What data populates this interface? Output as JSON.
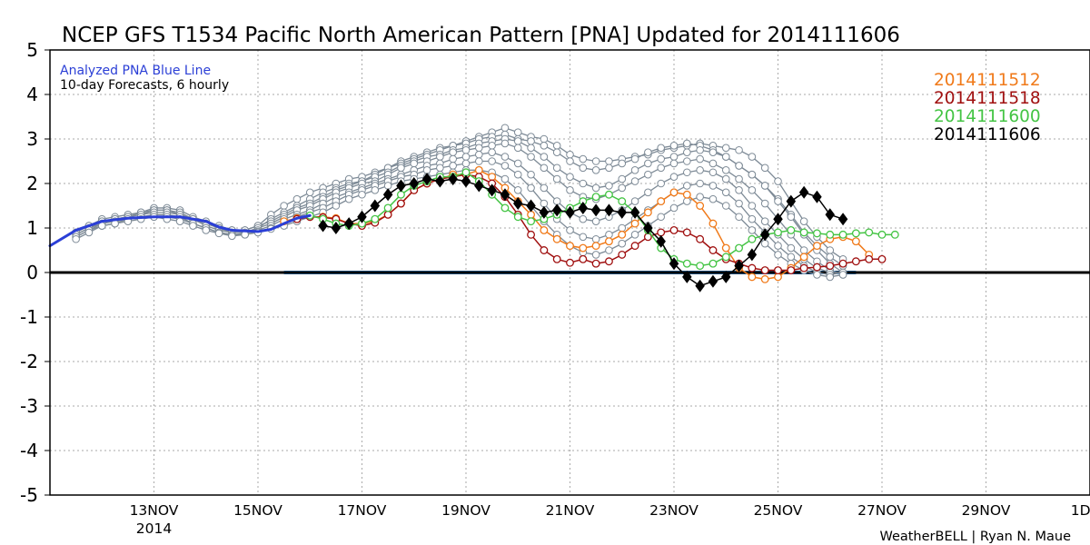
{
  "chart_data": {
    "type": "line",
    "title": "NCEP GFS T1534 Pacific North American Pattern [PNA] Updated for 2014111606",
    "annotation_line1": "Analyzed PNA Blue Line",
    "annotation_line2": "10-day Forecasts, 6 hourly",
    "credit": "WeatherBELL | Ryan N. Maue",
    "ylim": [
      -5,
      5
    ],
    "y_ticks": [
      "5",
      "4",
      "3",
      "2",
      "1",
      "0",
      "-1",
      "-2",
      "-3",
      "-4",
      "-5"
    ],
    "x_domain": [
      "2014-11-11",
      "2014-12-01"
    ],
    "x_ticks": [
      {
        "date": "2014-11-13",
        "label": "13NOV",
        "sub": "2014"
      },
      {
        "date": "2014-11-15",
        "label": "15NOV",
        "sub": ""
      },
      {
        "date": "2014-11-17",
        "label": "17NOV",
        "sub": ""
      },
      {
        "date": "2014-11-19",
        "label": "19NOV",
        "sub": ""
      },
      {
        "date": "2014-11-21",
        "label": "21NOV",
        "sub": ""
      },
      {
        "date": "2014-11-23",
        "label": "23NOV",
        "sub": ""
      },
      {
        "date": "2014-11-25",
        "label": "25NOV",
        "sub": ""
      },
      {
        "date": "2014-11-27",
        "label": "27NOV",
        "sub": ""
      },
      {
        "date": "2014-11-29",
        "label": "29NOV",
        "sub": ""
      },
      {
        "date": "2014-12-01",
        "label": "1DEC",
        "sub": ""
      }
    ],
    "grid": true,
    "legend_position": "top-right",
    "colors": {
      "analyzed": "#2b3fd6",
      "zero_line": "#000000",
      "zero_band": "#3a8fe0",
      "ensemble": "#7d8a96",
      "grid": "#aaaaaa"
    },
    "legend": [
      {
        "label": "2014111512",
        "color": "#f07a1a"
      },
      {
        "label": "2014111518",
        "color": "#a01010"
      },
      {
        "label": "2014111600",
        "color": "#44c444"
      },
      {
        "label": "2014111606",
        "color": "#000000"
      }
    ],
    "zero_band": {
      "x_start": "2014-11-15 12",
      "x_end": "2014-11-26 12",
      "y": 0
    },
    "analyzed": {
      "name": "Analyzed PNA Blue Line",
      "color": "#2b3fd6",
      "points": [
        [
          "2014-11-11 00",
          0.6
        ],
        [
          "2014-11-11 12",
          0.95
        ],
        [
          "2014-11-12 00",
          1.15
        ],
        [
          "2014-11-12 12",
          1.22
        ],
        [
          "2014-11-13 00",
          1.25
        ],
        [
          "2014-11-13 12",
          1.25
        ],
        [
          "2014-11-14 00",
          1.15
        ],
        [
          "2014-11-14 06",
          1.02
        ],
        [
          "2014-11-14 12",
          0.95
        ],
        [
          "2014-11-15 00",
          0.92
        ],
        [
          "2014-11-15 06",
          0.97
        ],
        [
          "2014-11-15 12",
          1.1
        ],
        [
          "2014-11-15 18",
          1.22
        ],
        [
          "2014-11-16 00",
          1.28
        ]
      ]
    },
    "series": [
      {
        "name": "2014111512",
        "color": "#f07a1a",
        "marker": "circle",
        "start": "2014-11-15 12",
        "values": [
          1.15,
          1.22,
          1.25,
          1.25,
          1.22,
          1.1,
          1.1,
          1.15,
          1.3,
          1.55,
          1.85,
          2.0,
          2.1,
          2.2,
          2.2,
          2.3,
          2.15,
          1.9,
          1.6,
          1.3,
          0.95,
          0.75,
          0.6,
          0.55,
          0.6,
          0.7,
          0.85,
          1.1,
          1.35,
          1.6,
          1.8,
          1.75,
          1.5,
          1.1,
          0.55,
          0.1,
          -0.1,
          -0.15,
          -0.1,
          0.1,
          0.35,
          0.6,
          0.75,
          0.8,
          0.7,
          0.4
        ]
      },
      {
        "name": "2014111518",
        "color": "#a01010",
        "marker": "circle",
        "start": "2014-11-15 18",
        "values": [
          1.2,
          1.25,
          1.24,
          1.2,
          1.1,
          1.05,
          1.12,
          1.3,
          1.55,
          1.85,
          2.0,
          2.1,
          2.15,
          2.2,
          2.15,
          2.0,
          1.7,
          1.3,
          0.85,
          0.5,
          0.3,
          0.22,
          0.3,
          0.2,
          0.25,
          0.4,
          0.6,
          0.8,
          0.9,
          0.95,
          0.9,
          0.75,
          0.5,
          0.3,
          0.2,
          0.1,
          0.05,
          0.05,
          0.05,
          0.1,
          0.12,
          0.15,
          0.2,
          0.25,
          0.3,
          0.3
        ]
      },
      {
        "name": "2014111600",
        "color": "#44c444",
        "marker": "circle",
        "start": "2014-11-16 00",
        "values": [
          1.28,
          1.2,
          1.1,
          1.05,
          1.1,
          1.2,
          1.45,
          1.75,
          1.95,
          2.05,
          2.15,
          2.15,
          2.25,
          2.05,
          1.75,
          1.45,
          1.25,
          1.15,
          1.2,
          1.3,
          1.45,
          1.6,
          1.7,
          1.75,
          1.6,
          1.35,
          0.95,
          0.55,
          0.3,
          0.2,
          0.15,
          0.2,
          0.35,
          0.55,
          0.75,
          0.85,
          0.9,
          0.95,
          0.9,
          0.88,
          0.85,
          0.85,
          0.88,
          0.9,
          0.85,
          0.85
        ]
      },
      {
        "name": "2014111606",
        "color": "#000000",
        "marker": "diamond",
        "start": "2014-11-16 06",
        "values": [
          1.05,
          1.0,
          1.1,
          1.25,
          1.5,
          1.75,
          1.95,
          2.0,
          2.1,
          2.05,
          2.1,
          2.05,
          1.95,
          1.85,
          1.75,
          1.55,
          1.5,
          1.35,
          1.4,
          1.35,
          1.45,
          1.4,
          1.4,
          1.35,
          1.35,
          1.0,
          0.7,
          0.2,
          -0.1,
          -0.3,
          -0.2,
          -0.1,
          0.15,
          0.4,
          0.85,
          1.2,
          1.6,
          1.8,
          1.7,
          1.3,
          1.2
        ]
      }
    ],
    "ensemble": {
      "name": "ensemble members",
      "color": "#7d8a96",
      "start": "2014-11-11 12",
      "members": [
        [
          0.9,
          1.05,
          1.2,
          1.25,
          1.3,
          1.35,
          1.45,
          1.45,
          1.4,
          1.25,
          1.15,
          1.05,
          0.95,
          0.95,
          1.05,
          1.3,
          1.5,
          1.65,
          1.8,
          1.9,
          2.0,
          2.1,
          2.15,
          2.25,
          2.35,
          2.5,
          2.6,
          2.7,
          2.8,
          2.85,
          2.95,
          3.05,
          3.15,
          3.25,
          3.15,
          3.05,
          3.0,
          2.85,
          2.65,
          2.55,
          2.5,
          2.5,
          2.55,
          2.6,
          2.65,
          2.75,
          2.8,
          2.85,
          2.9,
          2.85,
          2.8,
          2.75,
          2.6,
          2.35,
          2.05,
          1.6,
          1.15,
          0.8,
          0.5,
          0.3
        ],
        [
          0.85,
          1.0,
          1.15,
          1.2,
          1.25,
          1.3,
          1.4,
          1.4,
          1.35,
          1.2,
          1.1,
          1.0,
          0.9,
          0.9,
          1.0,
          1.2,
          1.35,
          1.5,
          1.65,
          1.8,
          1.9,
          2.0,
          2.05,
          2.2,
          2.35,
          2.45,
          2.55,
          2.65,
          2.75,
          2.85,
          2.9,
          3.0,
          3.05,
          3.1,
          3.0,
          2.95,
          2.85,
          2.7,
          2.5,
          2.35,
          2.3,
          2.35,
          2.45,
          2.55,
          2.7,
          2.8,
          2.85,
          2.9,
          2.85,
          2.75,
          2.6,
          2.4,
          2.2,
          1.95,
          1.65,
          1.3,
          0.9,
          0.6,
          0.35,
          0.15
        ],
        [
          0.9,
          1.05,
          1.15,
          1.2,
          1.25,
          1.35,
          1.4,
          1.4,
          1.3,
          1.2,
          1.1,
          1.0,
          0.95,
          0.95,
          1.05,
          1.15,
          1.3,
          1.45,
          1.55,
          1.7,
          1.85,
          1.95,
          2.05,
          2.15,
          2.25,
          2.4,
          2.5,
          2.6,
          2.65,
          2.75,
          2.8,
          2.9,
          2.95,
          3.0,
          2.95,
          2.8,
          2.6,
          2.35,
          2.15,
          2.0,
          1.9,
          1.95,
          2.1,
          2.3,
          2.45,
          2.55,
          2.6,
          2.7,
          2.75,
          2.7,
          2.6,
          2.4,
          2.2,
          1.95,
          1.6,
          1.25,
          0.85,
          0.5,
          0.2,
          0.0
        ],
        [
          0.85,
          1.0,
          1.1,
          1.2,
          1.25,
          1.3,
          1.35,
          1.35,
          1.3,
          1.2,
          1.05,
          0.95,
          0.9,
          0.9,
          1.0,
          1.1,
          1.25,
          1.4,
          1.5,
          1.65,
          1.8,
          1.9,
          2.0,
          2.05,
          2.2,
          2.35,
          2.45,
          2.5,
          2.6,
          2.7,
          2.75,
          2.8,
          2.85,
          2.9,
          2.8,
          2.6,
          2.35,
          2.1,
          1.85,
          1.7,
          1.65,
          1.75,
          1.9,
          2.05,
          2.2,
          2.35,
          2.45,
          2.5,
          2.55,
          2.45,
          2.3,
          2.1,
          1.85,
          1.55,
          1.2,
          0.85,
          0.5,
          0.25,
          0.05,
          -0.05
        ],
        [
          0.8,
          0.95,
          1.1,
          1.15,
          1.2,
          1.25,
          1.3,
          1.3,
          1.25,
          1.1,
          1.0,
          0.9,
          0.85,
          0.88,
          0.95,
          1.05,
          1.2,
          1.3,
          1.4,
          1.55,
          1.7,
          1.8,
          1.9,
          2.0,
          2.1,
          2.2,
          2.3,
          2.4,
          2.45,
          2.55,
          2.6,
          2.65,
          2.7,
          2.6,
          2.45,
          2.2,
          1.9,
          1.6,
          1.35,
          1.2,
          1.15,
          1.25,
          1.4,
          1.6,
          1.8,
          2.0,
          2.15,
          2.25,
          2.3,
          2.25,
          2.1,
          1.85,
          1.5,
          1.15,
          0.85,
          0.55,
          0.3,
          0.1,
          0.0,
          0.0
        ],
        [
          0.8,
          0.95,
          1.05,
          1.1,
          1.2,
          1.25,
          1.25,
          1.25,
          1.2,
          1.1,
          1.0,
          0.9,
          0.85,
          0.85,
          0.92,
          1.0,
          1.1,
          1.25,
          1.35,
          1.45,
          1.6,
          1.75,
          1.85,
          1.95,
          2.05,
          2.15,
          2.2,
          2.3,
          2.35,
          2.4,
          2.45,
          2.5,
          2.5,
          2.4,
          2.2,
          1.9,
          1.55,
          1.2,
          0.95,
          0.8,
          0.75,
          0.85,
          1.0,
          1.2,
          1.4,
          1.6,
          1.8,
          1.95,
          2.0,
          1.95,
          1.8,
          1.55,
          1.2,
          0.9,
          0.6,
          0.35,
          0.15,
          0.0,
          -0.05,
          0.0
        ],
        [
          0.75,
          0.9,
          1.05,
          1.1,
          1.15,
          1.2,
          1.25,
          1.2,
          1.15,
          1.05,
          0.95,
          0.88,
          0.82,
          0.85,
          0.9,
          0.98,
          1.05,
          1.15,
          1.25,
          1.35,
          1.5,
          1.65,
          1.75,
          1.85,
          1.95,
          2.05,
          2.1,
          2.15,
          2.2,
          2.25,
          2.3,
          2.3,
          2.25,
          2.1,
          1.85,
          1.5,
          1.15,
          0.85,
          0.6,
          0.45,
          0.4,
          0.5,
          0.65,
          0.85,
          1.05,
          1.25,
          1.45,
          1.6,
          1.7,
          1.65,
          1.5,
          1.25,
          0.95,
          0.65,
          0.4,
          0.2,
          0.05,
          -0.05,
          -0.1,
          -0.05
        ]
      ]
    }
  }
}
